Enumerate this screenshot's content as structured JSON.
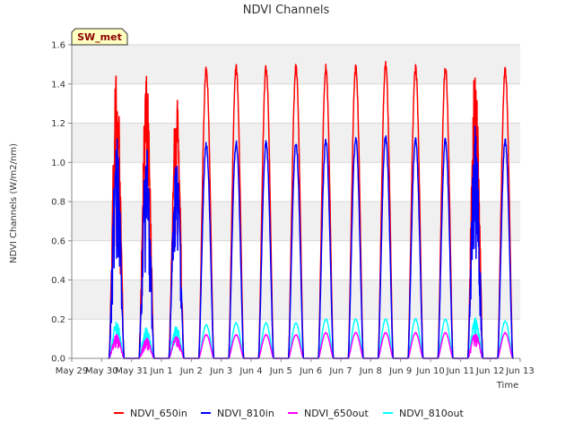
{
  "chart_data": {
    "type": "line",
    "title": "NDVI Channels",
    "xlabel": "Time",
    "ylabel": "NDVI Channels (W/m2/nm)",
    "ylim": [
      0.0,
      1.6
    ],
    "yticks": [
      "0.0",
      "0.2",
      "0.4",
      "0.6",
      "0.8",
      "1.0",
      "1.2",
      "1.4",
      "1.6"
    ],
    "xlim_days": [
      0,
      15
    ],
    "xticks": [
      "May 29",
      "May 30",
      "May 31",
      "Jun 1",
      "Jun 2",
      "Jun 3",
      "Jun 4",
      "Jun 5",
      "Jun 6",
      "Jun 7",
      "Jun 8",
      "Jun 9",
      "Jun 10",
      "Jun 11",
      "Jun 12",
      "Jun 13"
    ],
    "badge": "SW_met",
    "days": [
      "May 30",
      "May 31",
      "Jun 1",
      "Jun 2",
      "Jun 3",
      "Jun 4",
      "Jun 5",
      "Jun 6",
      "Jun 7",
      "Jun 8",
      "Jun 9",
      "Jun 10",
      "Jun 11",
      "Jun 12"
    ],
    "series": [
      {
        "name": "NDVI_650in",
        "color": "#ff0000",
        "daily_peak": [
          1.45,
          1.38,
          1.32,
          1.47,
          1.48,
          1.48,
          1.48,
          1.48,
          1.48,
          1.5,
          1.48,
          1.48,
          1.49,
          1.47
        ]
      },
      {
        "name": "NDVI_810in",
        "color": "#0000ff",
        "daily_peak": [
          1.08,
          1.02,
          0.99,
          1.09,
          1.1,
          1.1,
          1.1,
          1.11,
          1.12,
          1.13,
          1.12,
          1.11,
          1.13,
          1.11
        ]
      },
      {
        "name": "NDVI_650out",
        "color": "#ff00ff",
        "daily_peak": [
          0.12,
          0.1,
          0.11,
          0.12,
          0.12,
          0.12,
          0.12,
          0.13,
          0.13,
          0.13,
          0.13,
          0.13,
          0.13,
          0.13
        ]
      },
      {
        "name": "NDVI_810out",
        "color": "#00ffff",
        "daily_peak": [
          0.18,
          0.15,
          0.16,
          0.17,
          0.18,
          0.18,
          0.18,
          0.2,
          0.2,
          0.2,
          0.2,
          0.2,
          0.2,
          0.19
        ]
      }
    ]
  }
}
